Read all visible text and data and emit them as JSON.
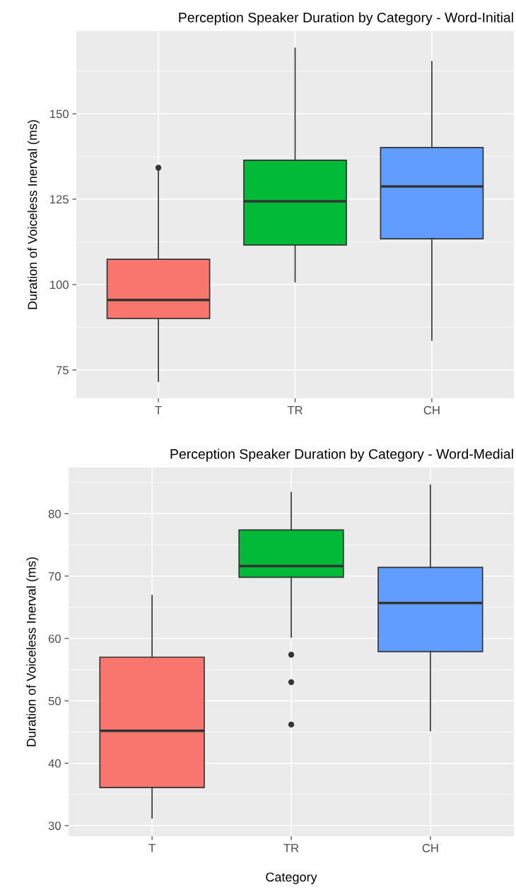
{
  "chart_data": [
    {
      "type": "box",
      "title": "Perception Speaker Duration by Category - Word-Initial",
      "ylabel": "Duration of Voiceless Inerval (ms)",
      "categories": [
        "T",
        "TR",
        "CH"
      ],
      "colors": [
        "#f8766d",
        "#00ba38",
        "#619cff"
      ],
      "boxes": [
        {
          "low": 71.7,
          "q1": 90.1,
          "median": 95.5,
          "q3": 107.4,
          "high": 133.5,
          "outliers": [
            134.2
          ]
        },
        {
          "low": 100.8,
          "q1": 111.6,
          "median": 124.4,
          "q3": 136.4,
          "high": 169.2
        },
        {
          "low": 83.7,
          "q1": 113.4,
          "median": 128.7,
          "q3": 140.1,
          "high": 165.3
        }
      ],
      "ylim": [
        66.7,
        174.2
      ],
      "yticks": [
        75,
        100,
        125,
        150
      ],
      "grid": true
    },
    {
      "type": "box",
      "title": "Perception Speaker Duration by Category - Word-Medial",
      "xlabel": "Category",
      "ylabel": "Duration of Voiceless Inerval (ms)",
      "categories": [
        "T",
        "TR",
        "CH"
      ],
      "colors": [
        "#f8766d",
        "#00ba38",
        "#619cff"
      ],
      "boxes": [
        {
          "low": 31.2,
          "q1": 36.1,
          "median": 45.2,
          "q3": 57.0,
          "high": 66.9
        },
        {
          "low": 60.2,
          "q1": 69.8,
          "median": 71.6,
          "q3": 77.4,
          "high": 83.4,
          "outliers": [
            57.4,
            53.0,
            46.2
          ]
        },
        {
          "low": 45.2,
          "q1": 57.9,
          "median": 65.7,
          "q3": 71.4,
          "high": 84.6
        }
      ],
      "ylim": [
        28.3,
        87.4
      ],
      "yticks": [
        30,
        40,
        50,
        60,
        70,
        80
      ],
      "grid": true
    }
  ]
}
